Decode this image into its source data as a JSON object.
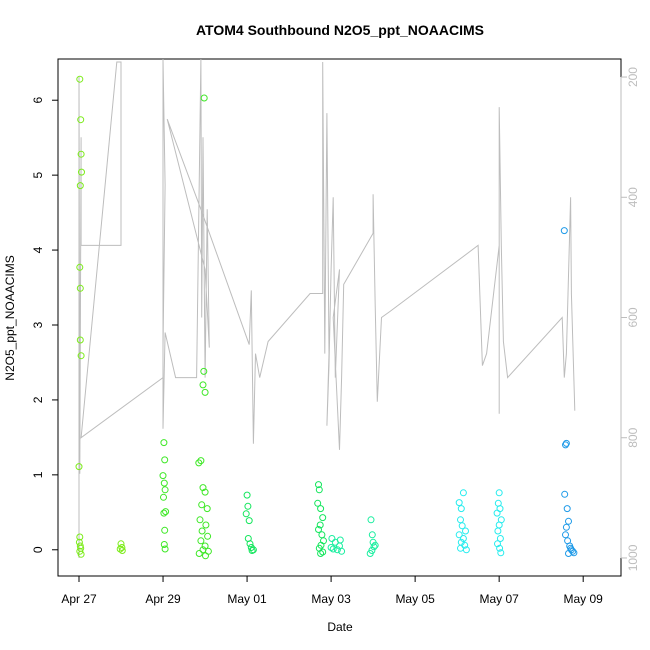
{
  "chart_data": {
    "type": "scatter",
    "title": "ATOM4 Southbound N2O5_ppt_NOAACIMS",
    "xlabel": "Date",
    "ylabel": "N2O5_ppt_NOAACIMS",
    "x_tick_labels": [
      "Apr 27",
      "Apr 29",
      "May 01",
      "May 03",
      "May 05",
      "May 07",
      "May 09"
    ],
    "x_tick_values": [
      0,
      2,
      4,
      6,
      8,
      10,
      12
    ],
    "xlim": [
      -0.5,
      12.9
    ],
    "x_units": "days since Apr 27",
    "y_ticks": [
      0,
      1,
      2,
      3,
      4,
      5,
      6
    ],
    "ylim": [
      -0.35,
      6.55
    ],
    "right_axis": {
      "ticks": [
        200,
        400,
        600,
        800,
        1000
      ],
      "ylim": [
        1030,
        170
      ],
      "color": "#bdbdbd",
      "reversed": true
    },
    "grid": false,
    "legend": "none",
    "series": [
      {
        "color": "#7cec1a",
        "points": [
          [
            0.02,
            6.28
          ],
          [
            0.04,
            5.74
          ],
          [
            0.05,
            5.28
          ],
          [
            0.06,
            5.04
          ],
          [
            0.03,
            4.86
          ],
          [
            0.02,
            3.77
          ],
          [
            0.03,
            3.49
          ],
          [
            0.03,
            2.8
          ],
          [
            0.05,
            2.59
          ],
          [
            0.0,
            1.11
          ],
          [
            0.02,
            0.17
          ],
          [
            0.01,
            0.1
          ],
          [
            0.03,
            0.05
          ],
          [
            0.04,
            0.02
          ],
          [
            0.02,
            -0.02
          ],
          [
            0.05,
            -0.06
          ],
          [
            1.0,
            0.08
          ],
          [
            1.02,
            0.03
          ],
          [
            0.98,
            0.01
          ],
          [
            1.03,
            -0.01
          ]
        ]
      },
      {
        "color": "#3ee826",
        "points": [
          [
            2.02,
            1.43
          ],
          [
            2.04,
            1.2
          ],
          [
            2.0,
            0.99
          ],
          [
            2.03,
            0.89
          ],
          [
            2.05,
            0.8
          ],
          [
            2.01,
            0.7
          ],
          [
            2.06,
            0.51
          ],
          [
            2.02,
            0.49
          ],
          [
            2.04,
            0.26
          ],
          [
            2.03,
            0.07
          ],
          [
            2.05,
            0.01
          ],
          [
            2.9,
            1.19
          ],
          [
            2.85,
            1.16
          ],
          [
            2.95,
            0.83
          ],
          [
            3.0,
            0.77
          ],
          [
            2.92,
            0.6
          ],
          [
            3.05,
            0.55
          ],
          [
            2.88,
            0.4
          ],
          [
            3.02,
            0.33
          ],
          [
            2.93,
            0.25
          ],
          [
            3.06,
            0.18
          ],
          [
            2.9,
            0.12
          ],
          [
            3.0,
            0.05
          ],
          [
            2.95,
            0.0
          ],
          [
            3.08,
            -0.02
          ],
          [
            2.86,
            -0.05
          ],
          [
            3.01,
            -0.08
          ],
          [
            2.97,
            2.38
          ],
          [
            2.95,
            2.2
          ],
          [
            3.0,
            2.1
          ],
          [
            2.98,
            6.03
          ]
        ]
      },
      {
        "color": "#13e65c",
        "points": [
          [
            4.0,
            0.73
          ],
          [
            4.02,
            0.58
          ],
          [
            3.98,
            0.48
          ],
          [
            4.05,
            0.39
          ],
          [
            4.03,
            0.15
          ],
          [
            4.07,
            0.08
          ],
          [
            4.1,
            0.03
          ],
          [
            4.12,
            -0.01
          ],
          [
            4.15,
            0.0
          ],
          [
            5.7,
            0.87
          ],
          [
            5.72,
            0.8
          ],
          [
            5.68,
            0.62
          ],
          [
            5.75,
            0.55
          ],
          [
            5.8,
            0.43
          ],
          [
            5.74,
            0.33
          ],
          [
            5.7,
            0.27
          ],
          [
            5.78,
            0.2
          ],
          [
            5.82,
            0.12
          ],
          [
            5.76,
            0.06
          ],
          [
            5.72,
            0.02
          ],
          [
            5.8,
            -0.03
          ],
          [
            5.75,
            -0.05
          ]
        ]
      },
      {
        "color": "#19ee9f",
        "points": [
          [
            6.0,
            0.03
          ],
          [
            6.05,
            0.01
          ],
          [
            6.1,
            0.1
          ],
          [
            6.15,
            0.0
          ],
          [
            6.2,
            0.05
          ],
          [
            6.25,
            -0.02
          ],
          [
            6.02,
            0.15
          ],
          [
            6.22,
            0.13
          ],
          [
            6.95,
            0.4
          ],
          [
            6.98,
            0.2
          ],
          [
            7.0,
            0.1
          ],
          [
            7.02,
            0.04
          ],
          [
            6.97,
            -0.01
          ],
          [
            7.05,
            0.06
          ],
          [
            6.93,
            -0.05
          ]
        ]
      },
      {
        "color": "#26ecee",
        "points": [
          [
            9.05,
            0.63
          ],
          [
            9.1,
            0.55
          ],
          [
            9.15,
            0.76
          ],
          [
            9.08,
            0.4
          ],
          [
            9.12,
            0.32
          ],
          [
            9.2,
            0.25
          ],
          [
            9.05,
            0.2
          ],
          [
            9.15,
            0.15
          ],
          [
            9.1,
            0.1
          ],
          [
            9.18,
            0.06
          ],
          [
            9.08,
            0.02
          ],
          [
            9.22,
            0.0
          ],
          [
            10.0,
            0.76
          ],
          [
            9.98,
            0.62
          ],
          [
            10.02,
            0.55
          ],
          [
            9.95,
            0.49
          ],
          [
            10.05,
            0.4
          ],
          [
            10.0,
            0.33
          ],
          [
            9.97,
            0.25
          ],
          [
            10.03,
            0.15
          ],
          [
            9.96,
            0.08
          ],
          [
            10.01,
            0.02
          ],
          [
            10.04,
            -0.04
          ]
        ]
      },
      {
        "color": "#1e9ae8",
        "points": [
          [
            11.55,
            4.26
          ],
          [
            11.6,
            1.42
          ],
          [
            11.58,
            1.4
          ],
          [
            11.56,
            0.74
          ],
          [
            11.62,
            0.55
          ],
          [
            11.65,
            0.38
          ],
          [
            11.6,
            0.3
          ],
          [
            11.58,
            0.2
          ],
          [
            11.63,
            0.12
          ],
          [
            11.68,
            0.05
          ],
          [
            11.7,
            0.02
          ],
          [
            11.72,
            0.0
          ],
          [
            11.75,
            -0.02
          ],
          [
            11.78,
            -0.04
          ],
          [
            11.65,
            -0.05
          ]
        ]
      }
    ],
    "trace_right_axis": [
      [
        0.0,
        1000
      ],
      [
        0.0,
        200
      ],
      [
        0.02,
        860
      ],
      [
        0.05,
        300
      ],
      [
        0.05,
        480
      ],
      [
        1.0,
        480
      ],
      [
        1.0,
        175
      ],
      [
        0.9,
        175
      ],
      [
        0.05,
        800
      ],
      [
        2.0,
        700
      ],
      [
        2.0,
        120
      ],
      [
        2.05,
        380
      ],
      [
        2.0,
        650
      ],
      [
        2.0,
        785
      ],
      [
        2.05,
        625
      ],
      [
        2.3,
        700
      ],
      [
        2.8,
        700
      ],
      [
        2.9,
        150
      ],
      [
        2.92,
        600
      ],
      [
        2.95,
        300
      ],
      [
        3.0,
        700
      ],
      [
        3.05,
        420
      ],
      [
        3.1,
        650
      ],
      [
        3.0,
        520
      ],
      [
        2.1,
        270
      ],
      [
        2.9,
        420
      ],
      [
        4.05,
        645
      ],
      [
        4.1,
        555
      ],
      [
        4.15,
        810
      ],
      [
        4.2,
        660
      ],
      [
        4.3,
        700
      ],
      [
        4.5,
        640
      ],
      [
        5.5,
        560
      ],
      [
        5.8,
        560
      ],
      [
        5.8,
        175
      ],
      [
        5.85,
        660
      ],
      [
        5.9,
        260
      ],
      [
        5.95,
        660
      ],
      [
        5.9,
        780
      ],
      [
        5.95,
        680
      ],
      [
        6.0,
        520
      ],
      [
        6.05,
        400
      ],
      [
        6.1,
        700
      ],
      [
        6.2,
        520
      ],
      [
        6.05,
        600
      ],
      [
        6.2,
        820
      ],
      [
        6.25,
        700
      ],
      [
        6.3,
        545
      ],
      [
        7.0,
        460
      ],
      [
        7.0,
        395
      ],
      [
        7.05,
        580
      ],
      [
        7.1,
        740
      ],
      [
        7.2,
        600
      ],
      [
        7.4,
        590
      ],
      [
        9.5,
        480
      ],
      [
        9.6,
        680
      ],
      [
        9.7,
        660
      ],
      [
        10.0,
        480
      ],
      [
        10.0,
        760
      ],
      [
        10.0,
        250
      ],
      [
        10.05,
        480
      ],
      [
        10.1,
        640
      ],
      [
        10.2,
        700
      ],
      [
        11.5,
        600
      ],
      [
        11.55,
        700
      ],
      [
        11.6,
        660
      ],
      [
        11.7,
        400
      ],
      [
        11.72,
        560
      ],
      [
        11.8,
        755
      ]
    ]
  }
}
